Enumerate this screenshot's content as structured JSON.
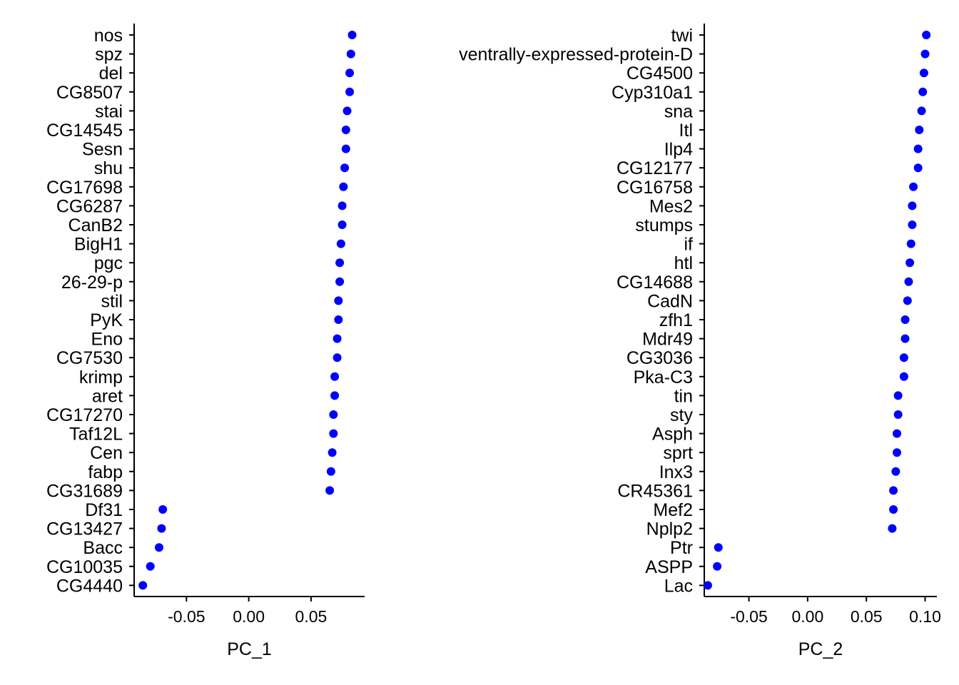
{
  "chart_data": [
    {
      "type": "scatter",
      "xlabel": "PC_1",
      "xlim": [
        -0.092,
        0.093
      ],
      "xticks": [
        -0.05,
        0.0,
        0.05
      ],
      "xtick_labels": [
        "-0.05",
        "0.00",
        "0.05"
      ],
      "point_color": "#0000FF",
      "categories": [
        "nos",
        "spz",
        "del",
        "CG8507",
        "stai",
        "CG14545",
        "Sesn",
        "shu",
        "CG17698",
        "CG6287",
        "CanB2",
        "BigH1",
        "pgc",
        "26-29-p",
        "stil",
        "PyK",
        "Eno",
        "CG7530",
        "krimp",
        "aret",
        "CG17270",
        "Taf12L",
        "Cen",
        "fabp",
        "CG31689",
        "Df31",
        "CG13427",
        "Bacc",
        "CG10035",
        "CG4440"
      ],
      "values": [
        0.083,
        0.082,
        0.081,
        0.081,
        0.079,
        0.078,
        0.078,
        0.077,
        0.076,
        0.075,
        0.075,
        0.074,
        0.073,
        0.073,
        0.072,
        0.072,
        0.071,
        0.071,
        0.069,
        0.069,
        0.068,
        0.068,
        0.067,
        0.066,
        0.065,
        -0.069,
        -0.07,
        -0.072,
        -0.079,
        -0.085
      ]
    },
    {
      "type": "scatter",
      "xlabel": "PC_2",
      "xlim": [
        -0.088,
        0.11
      ],
      "xticks": [
        -0.05,
        0.0,
        0.05,
        0.1
      ],
      "xtick_labels": [
        "-0.05",
        "0.00",
        "0.05",
        "0.10"
      ],
      "point_color": "#0000FF",
      "categories": [
        "twi",
        "ventrally-expressed-protein-D",
        "CG4500",
        "Cyp310a1",
        "sna",
        "Itl",
        "Ilp4",
        "CG12177",
        "CG16758",
        "Mes2",
        "stumps",
        "if",
        "htl",
        "CG14688",
        "CadN",
        "zfh1",
        "Mdr49",
        "CG3036",
        "Pka-C3",
        "tin",
        "sty",
        "Asph",
        "sprt",
        "Inx3",
        "CR45361",
        "Mef2",
        "Nplp2",
        "Ptr",
        "ASPP",
        "Lac"
      ],
      "values": [
        0.101,
        0.1,
        0.099,
        0.098,
        0.097,
        0.095,
        0.094,
        0.094,
        0.09,
        0.089,
        0.089,
        0.088,
        0.087,
        0.086,
        0.085,
        0.083,
        0.083,
        0.082,
        0.082,
        0.077,
        0.077,
        0.076,
        0.076,
        0.075,
        0.073,
        0.073,
        0.072,
        -0.076,
        -0.077,
        -0.085
      ]
    }
  ]
}
